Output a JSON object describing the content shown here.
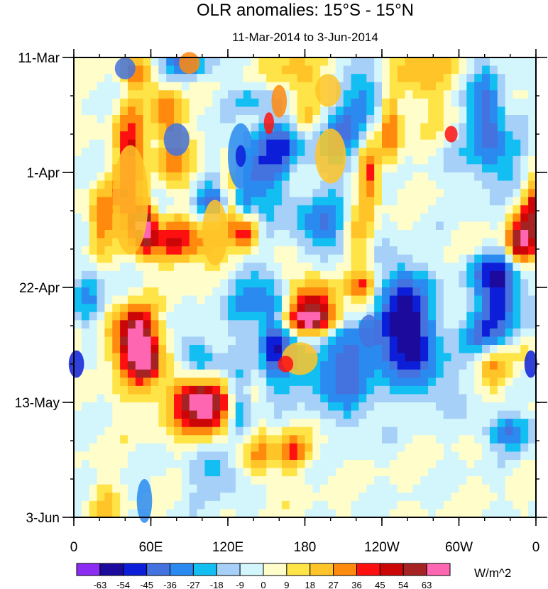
{
  "chart_data": {
    "type": "heatmap",
    "title": "OLR anomalies: 15°S - 15°N",
    "subtitle": "11-Mar-2014 to 3-Jun-2014",
    "x_axis": {
      "ticks": [
        "0",
        "60E",
        "120E",
        "180",
        "120W",
        "60W",
        "0"
      ],
      "tick_values": [
        0,
        60,
        120,
        180,
        240,
        300,
        360
      ],
      "range": [
        0,
        360
      ],
      "minor_step": 20
    },
    "y_axis": {
      "ticks": [
        "11-Mar",
        "1-Apr",
        "22-Apr",
        "13-May",
        "3-Jun"
      ],
      "tick_values": [
        0,
        21,
        42,
        63,
        84
      ],
      "range": [
        0,
        84
      ],
      "minor_step": 7,
      "reversed": true
    },
    "colorbar": {
      "unit": "W/m^2",
      "levels": [
        "-63",
        "-54",
        "-45",
        "-36",
        "-27",
        "-18",
        "-9",
        "0",
        "9",
        "18",
        "27",
        "36",
        "45",
        "54",
        "63"
      ],
      "colors": [
        "#8c2bf2",
        "#1c0a9c",
        "#0d1ed9",
        "#4472de",
        "#2a8aef",
        "#13bff2",
        "#a6d0f7",
        "#d2f6fb",
        "#fffdca",
        "#ffe448",
        "#ffc428",
        "#ff8a0e",
        "#ff1010",
        "#cc0606",
        "#a52323",
        "#ff66b2"
      ]
    },
    "grid": false
  }
}
